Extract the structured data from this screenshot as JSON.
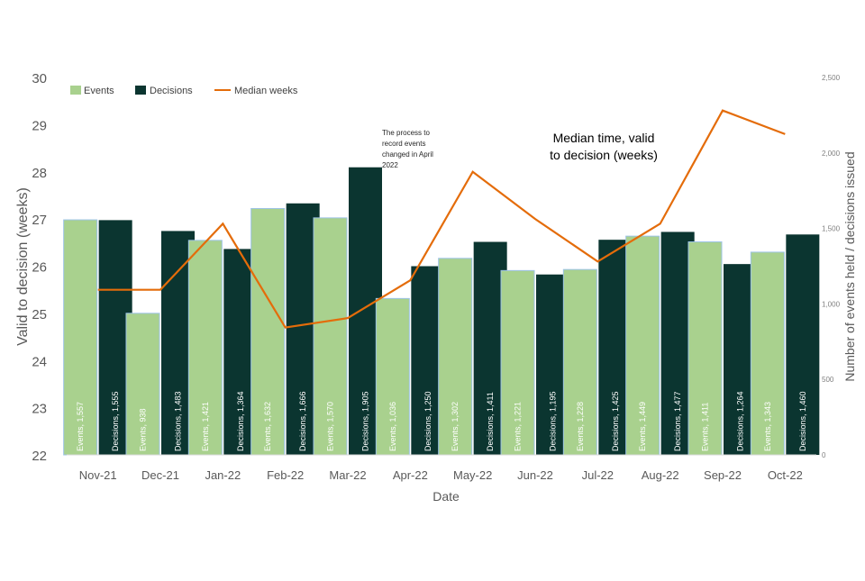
{
  "chart_data": {
    "type": "bar",
    "title": "Median time, valid to decision (weeks)",
    "annotation": "The process to record events changed in April 2022",
    "xlabel": "Date",
    "ylabel": "Valid to decision (weeks)",
    "y2label": "Number of events held / decisions issued",
    "ylim": [
      22,
      30
    ],
    "y2lim": [
      0,
      2500
    ],
    "yticks": [
      22,
      23,
      24,
      25,
      26,
      27,
      28,
      29,
      30
    ],
    "y2ticks": [
      0,
      500,
      1000,
      1500,
      2000,
      2500
    ],
    "y2tick_labels": [
      "0",
      "500",
      "1,000",
      "1,500",
      "2,000",
      "2,500"
    ],
    "categories": [
      "Nov-21",
      "Dec-21",
      "Jan-22",
      "Feb-22",
      "Mar-22",
      "Apr-22",
      "May-22",
      "Jun-22",
      "Jul-22",
      "Aug-22",
      "Sep-22",
      "Oct-22"
    ],
    "legend": [
      "Events",
      "Decisions",
      "Median weeks"
    ],
    "legend_position": "top-left",
    "grid": false,
    "colors": {
      "events": "#a9d18e",
      "events_edge": "#9dc3e6",
      "decisions": "#0b3530",
      "median": "#e46c0a"
    },
    "series": [
      {
        "name": "Events",
        "axis": "right",
        "kind": "bar",
        "values": [
          1557,
          938,
          1421,
          1632,
          1570,
          1036,
          1302,
          1221,
          1228,
          1449,
          1411,
          1343
        ],
        "labels": [
          "Events, 1,557",
          "Events, 938",
          "Events, 1,421",
          "Events, 1,632",
          "Events, 1,570",
          "Events, 1,036",
          "Events, 1,302",
          "Events, 1,221",
          "Events, 1,228",
          "Events, 1,449",
          "Events, 1,411",
          "Events, 1,343"
        ]
      },
      {
        "name": "Decisions",
        "axis": "right",
        "kind": "bar",
        "values": [
          1555,
          1483,
          1364,
          1666,
          1905,
          1250,
          1411,
          1195,
          1425,
          1477,
          1264,
          1460
        ],
        "labels": [
          "Decisions, 1,555",
          "Decisions, 1,483",
          "Decisions, 1,364",
          "Decisions, 1,666",
          "Decisions, 1,905",
          "Decisions, 1,250",
          "Decisions, 1,411",
          "Decisions, 1,195",
          "Decisions, 1,425",
          "Decisions, 1,477",
          "Decisions, 1,264",
          "Decisions, 1,460"
        ]
      },
      {
        "name": "Median weeks",
        "axis": "left",
        "kind": "line",
        "values": [
          25.5,
          25.5,
          26.9,
          24.7,
          24.9,
          25.7,
          28.0,
          27.0,
          26.1,
          26.9,
          29.3,
          28.8
        ]
      }
    ]
  }
}
